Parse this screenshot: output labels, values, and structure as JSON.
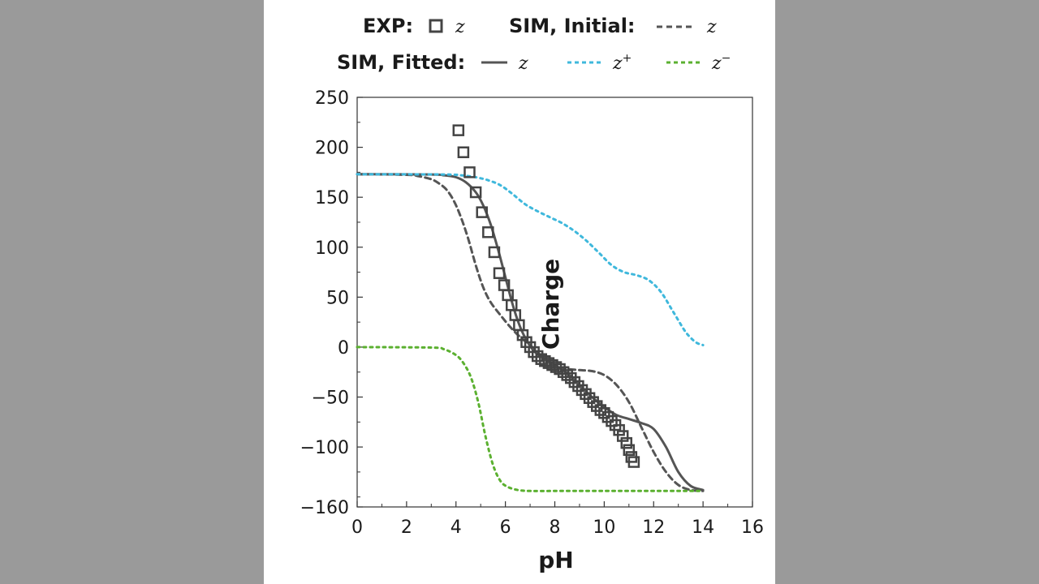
{
  "colors": {
    "background": "#9a9a9a",
    "panel": "#ffffff",
    "exp": "#444444",
    "sim_initial": "#555555",
    "sim_fitted": "#555555",
    "z_plus": "#3fb8dc",
    "z_minus": "#5bb030"
  },
  "legend": {
    "exp_label": "EXP:",
    "exp_symbol": "z",
    "sim_initial_label": "SIM, Initial:",
    "sim_initial_symbol": "z",
    "sim_fitted_label": "SIM, Fitted:",
    "sim_fitted_symbol": "z",
    "zplus_symbol": "z",
    "zplus_sup": "+",
    "zminus_symbol": "z",
    "zminus_sup": "−"
  },
  "chart_data": {
    "type": "line",
    "xlabel": "pH",
    "ylabel": "Charge",
    "xlim": [
      0,
      16
    ],
    "ylim": [
      -160,
      250
    ],
    "x_ticks": [
      0,
      2,
      4,
      6,
      8,
      10,
      12,
      14,
      16
    ],
    "y_ticks": [
      250,
      200,
      150,
      100,
      50,
      0,
      -50,
      -100,
      -160
    ],
    "x_tick_labels": [
      "0",
      "2",
      "4",
      "6",
      "8",
      "10",
      "12",
      "14",
      "16"
    ],
    "y_tick_labels": [
      "250",
      "200",
      "150",
      "100",
      "50",
      "0",
      "−50",
      "−100",
      "−160"
    ],
    "series": [
      {
        "name": "SIM, Initial: z",
        "style": "dashed",
        "x": [
          0,
          2.0,
          2.5,
          3.0,
          3.3,
          3.6,
          3.9,
          4.2,
          4.5,
          4.8,
          5.1,
          5.4,
          5.8,
          6.2,
          6.6,
          7.0,
          7.5,
          8.0,
          8.5,
          9.0,
          9.5,
          10.0,
          10.5,
          11.0,
          11.5,
          12.0,
          12.5,
          13.0,
          13.5,
          14.0
        ],
        "y": [
          173,
          172.5,
          171,
          168,
          164,
          158,
          147,
          130,
          108,
          82,
          60,
          45,
          32,
          20,
          10,
          2,
          -10,
          -20,
          -22,
          -23,
          -24,
          -28,
          -38,
          -55,
          -80,
          -105,
          -125,
          -138,
          -143,
          -144
        ]
      },
      {
        "name": "SIM, Fitted: z",
        "style": "solid",
        "x": [
          0,
          3.0,
          3.5,
          4.0,
          4.4,
          4.8,
          5.1,
          5.4,
          5.7,
          6.0,
          6.3,
          6.6,
          6.9,
          7.2,
          7.6,
          8.0,
          8.5,
          9.0,
          9.5,
          10.0,
          10.5,
          11.0,
          11.5,
          12.0,
          12.5,
          13.0,
          13.5,
          14.0
        ],
        "y": [
          173,
          172.8,
          172,
          170,
          165,
          155,
          142,
          123,
          98,
          70,
          42,
          20,
          5,
          -5,
          -12,
          -18,
          -26,
          -38,
          -50,
          -60,
          -68,
          -72,
          -76,
          -82,
          -100,
          -125,
          -139,
          -143
        ]
      },
      {
        "name": "z+",
        "style": "dotted",
        "x": [
          0,
          3.5,
          4.2,
          4.8,
          5.3,
          5.8,
          6.3,
          6.8,
          7.3,
          7.8,
          8.3,
          8.8,
          9.3,
          9.8,
          10.3,
          10.8,
          11.3,
          11.8,
          12.3,
          12.8,
          13.3,
          13.7,
          14.0
        ],
        "y": [
          173,
          172.8,
          172,
          170,
          167,
          162,
          153,
          143,
          136,
          130,
          124,
          116,
          106,
          94,
          82,
          75,
          72,
          67,
          55,
          35,
          15,
          5,
          2
        ]
      },
      {
        "name": "z−",
        "style": "dotted",
        "x": [
          0,
          3.0,
          3.5,
          4.0,
          4.3,
          4.6,
          4.9,
          5.2,
          5.5,
          5.8,
          6.1,
          6.5,
          7.0,
          8.0,
          10.0,
          12.0,
          14.0
        ],
        "y": [
          0,
          -0.5,
          -2,
          -8,
          -16,
          -30,
          -55,
          -90,
          -118,
          -134,
          -140,
          -143,
          -144,
          -144,
          -144,
          -144,
          -144
        ]
      }
    ],
    "exp_points": {
      "name": "EXP: z",
      "x": [
        4.1,
        4.3,
        4.55,
        4.8,
        5.05,
        5.3,
        5.55,
        5.75,
        5.95,
        6.1,
        6.25,
        6.4,
        6.55,
        6.7,
        6.85,
        7.0,
        7.15,
        7.3,
        7.45,
        7.6,
        7.75,
        7.9,
        8.05,
        8.2,
        8.35,
        8.5,
        8.65,
        8.8,
        8.95,
        9.1,
        9.25,
        9.4,
        9.55,
        9.7,
        9.85,
        10.0,
        10.15,
        10.3,
        10.45,
        10.6,
        10.75,
        10.9,
        11.0,
        11.1,
        11.2
      ],
      "y": [
        217,
        195,
        175,
        155,
        135,
        115,
        95,
        74,
        62,
        52,
        42,
        32,
        22,
        12,
        5,
        0,
        -5,
        -9,
        -12,
        -14,
        -16,
        -18,
        -20,
        -22,
        -25,
        -28,
        -31,
        -35,
        -39,
        -43,
        -47,
        -51,
        -55,
        -59,
        -63,
        -66,
        -70,
        -74,
        -78,
        -83,
        -89,
        -96,
        -103,
        -110,
        -115
      ]
    }
  }
}
